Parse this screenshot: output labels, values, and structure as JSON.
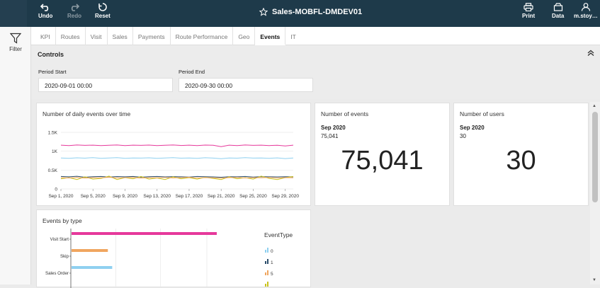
{
  "toolbar": {
    "undo_label": "Undo",
    "redo_label": "Redo",
    "reset_label": "Reset",
    "title": "Sales-MOBFL-DMDEV01",
    "print_label": "Print",
    "data_label": "Data",
    "user_label": "m.stoy…"
  },
  "sidebar": {
    "filter_label": "Filter"
  },
  "tabs": [
    {
      "label": "KPI",
      "active": false
    },
    {
      "label": "Routes",
      "active": false
    },
    {
      "label": "Visit",
      "active": false
    },
    {
      "label": "Sales",
      "active": false
    },
    {
      "label": "Payments",
      "active": false
    },
    {
      "label": "Route Performance",
      "active": false
    },
    {
      "label": "Geo",
      "active": false
    },
    {
      "label": "Events",
      "active": true
    },
    {
      "label": "IT",
      "active": false
    }
  ],
  "controls": {
    "title": "Controls",
    "period_start_label": "Period Start",
    "period_start_value": "2020-09-01 00:00",
    "period_end_label": "Period End",
    "period_end_value": "2020-09-30 00:00"
  },
  "daily_events": {
    "title": "Number of daily events over time"
  },
  "events_kpi": {
    "title": "Number of events",
    "period": "Sep 2020",
    "sub": "75,041",
    "value": "75,041"
  },
  "users_kpi": {
    "title": "Number of users",
    "period": "Sep 2020",
    "sub": "30",
    "value": "30"
  },
  "events_by_type": {
    "title": "Events by type",
    "legend_title": "EventType"
  },
  "chart_data": [
    {
      "type": "line",
      "title": "Number of daily events over time",
      "ylim": [
        0,
        1500
      ],
      "yticks": [
        "0",
        "0.5K",
        "1K",
        "1.5K"
      ],
      "xticks": [
        "Sep 1, 2020",
        "Sep 5, 2020",
        "Sep 9, 2020",
        "Sep 13, 2020",
        "Sep 17, 2020",
        "Sep 21, 2020",
        "Sep 25, 2020",
        "Sep 29, 2020"
      ],
      "x": [
        1,
        2,
        3,
        4,
        5,
        6,
        7,
        8,
        9,
        10,
        11,
        12,
        13,
        14,
        15,
        16,
        17,
        18,
        19,
        20,
        21,
        22,
        23,
        24,
        25,
        26,
        27,
        28,
        29,
        30
      ],
      "series": [
        {
          "color": "#e6399b",
          "values": [
            1160,
            1150,
            1165,
            1155,
            1160,
            1150,
            1158,
            1165,
            1150,
            1160,
            1155,
            1162,
            1150,
            1158,
            1165,
            1152,
            1160,
            1148,
            1162,
            1158,
            1120,
            1160,
            1150,
            1165,
            1155,
            1160,
            1150,
            1158,
            1140,
            1160
          ]
        },
        {
          "color": "#8fd0f0",
          "values": [
            820,
            810,
            825,
            815,
            830,
            812,
            820,
            828,
            810,
            822,
            818,
            825,
            812,
            820,
            830,
            815,
            822,
            810,
            826,
            818,
            800,
            822,
            815,
            828,
            818,
            820,
            812,
            824,
            805,
            820
          ]
        },
        {
          "color": "#2b4d6b",
          "values": [
            330,
            320,
            335,
            310,
            325,
            330,
            315,
            328,
            320,
            330,
            312,
            325,
            330,
            318,
            326,
            320,
            315,
            330,
            322,
            318,
            310,
            325,
            320,
            330,
            315,
            326,
            320,
            318,
            325,
            320
          ]
        },
        {
          "color": "#c9c21c",
          "values": [
            270,
            300,
            250,
            320,
            260,
            280,
            340,
            250,
            300,
            270,
            330,
            260,
            290,
            250,
            320,
            270,
            300,
            260,
            310,
            280,
            250,
            320,
            270,
            300,
            260,
            340,
            280,
            250,
            300,
            330
          ]
        },
        {
          "color": "#f0a660",
          "values": [
            300,
            290,
            305,
            285,
            300,
            295,
            310,
            290,
            300,
            305,
            285,
            300,
            295,
            305,
            290,
            300,
            310,
            290,
            300,
            295,
            285,
            300,
            305,
            290,
            300,
            295,
            305,
            290,
            300,
            295
          ]
        }
      ]
    },
    {
      "type": "bar",
      "orientation": "horizontal",
      "title": "Events by type",
      "categories": [
        "Visit Start",
        "Skip",
        "Sales Order"
      ],
      "bar_colors": [
        "#e6399b",
        "#f0a660",
        "#8fd0f0"
      ],
      "values": [
        1.0,
        0.25,
        0.28
      ],
      "legend_title": "EventType",
      "legend": [
        {
          "name": "0",
          "color": "#8fd0f0"
        },
        {
          "name": "1",
          "color": "#2b4d6b"
        },
        {
          "name": "5",
          "color": "#f0a660"
        },
        {
          "name": "",
          "color": "#c9c21c"
        }
      ]
    }
  ]
}
